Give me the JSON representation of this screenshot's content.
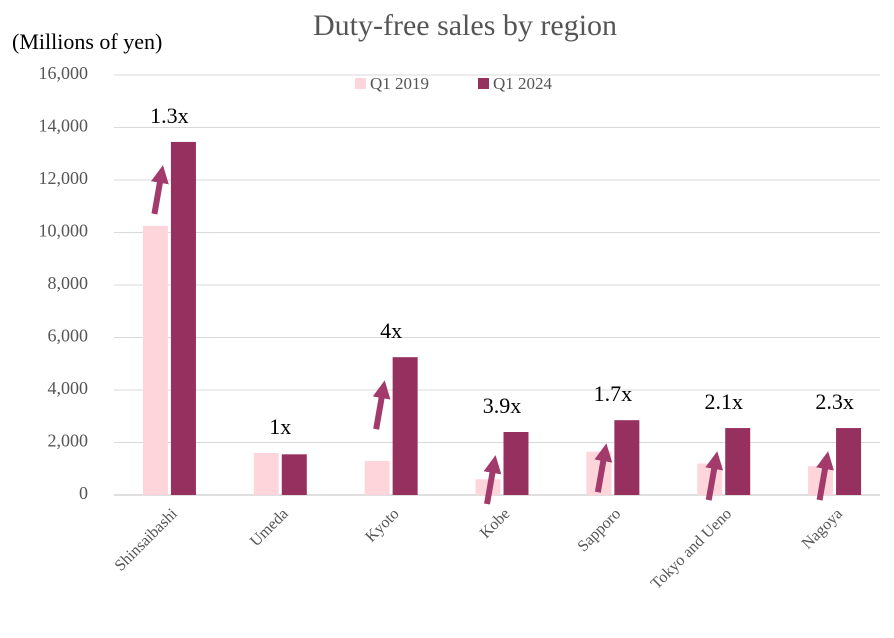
{
  "chart_data": {
    "type": "bar",
    "title": "Duty-free sales by region",
    "y_label": "(Millions of yen)",
    "categories": [
      "Shinsaibashi",
      "Umeda",
      "Kyoto",
      "Kobe",
      "Sapporo",
      "Tokyo and Ueno",
      "Nagoya"
    ],
    "series": [
      {
        "name": "Q1 2019",
        "color": "#ffd5dc",
        "values": [
          10250,
          1600,
          1300,
          600,
          1650,
          1200,
          1100
        ]
      },
      {
        "name": "Q1 2024",
        "color": "#95305f",
        "values": [
          13450,
          1550,
          5250,
          2400,
          2850,
          2550,
          2550
        ]
      }
    ],
    "annotations": [
      "1.3x",
      "1x",
      "4x",
      "3.9x",
      "1.7x",
      "2.1x",
      "2.3x"
    ],
    "ylim": [
      0,
      16000
    ],
    "yticks": [
      0,
      {
        "value": 2000,
        "label": "2,000"
      },
      {
        "value": 4000,
        "label": "4,000"
      },
      {
        "value": 6000,
        "label": "6,000"
      },
      {
        "value": 8000,
        "label": "8,000"
      },
      {
        "value": 10000,
        "label": "10,000"
      },
      {
        "value": 12000,
        "label": "12,000"
      },
      {
        "value": 14000,
        "label": "14,000"
      },
      {
        "value": 16000,
        "label": "16,000"
      }
    ],
    "grid": true,
    "legend": "top"
  }
}
